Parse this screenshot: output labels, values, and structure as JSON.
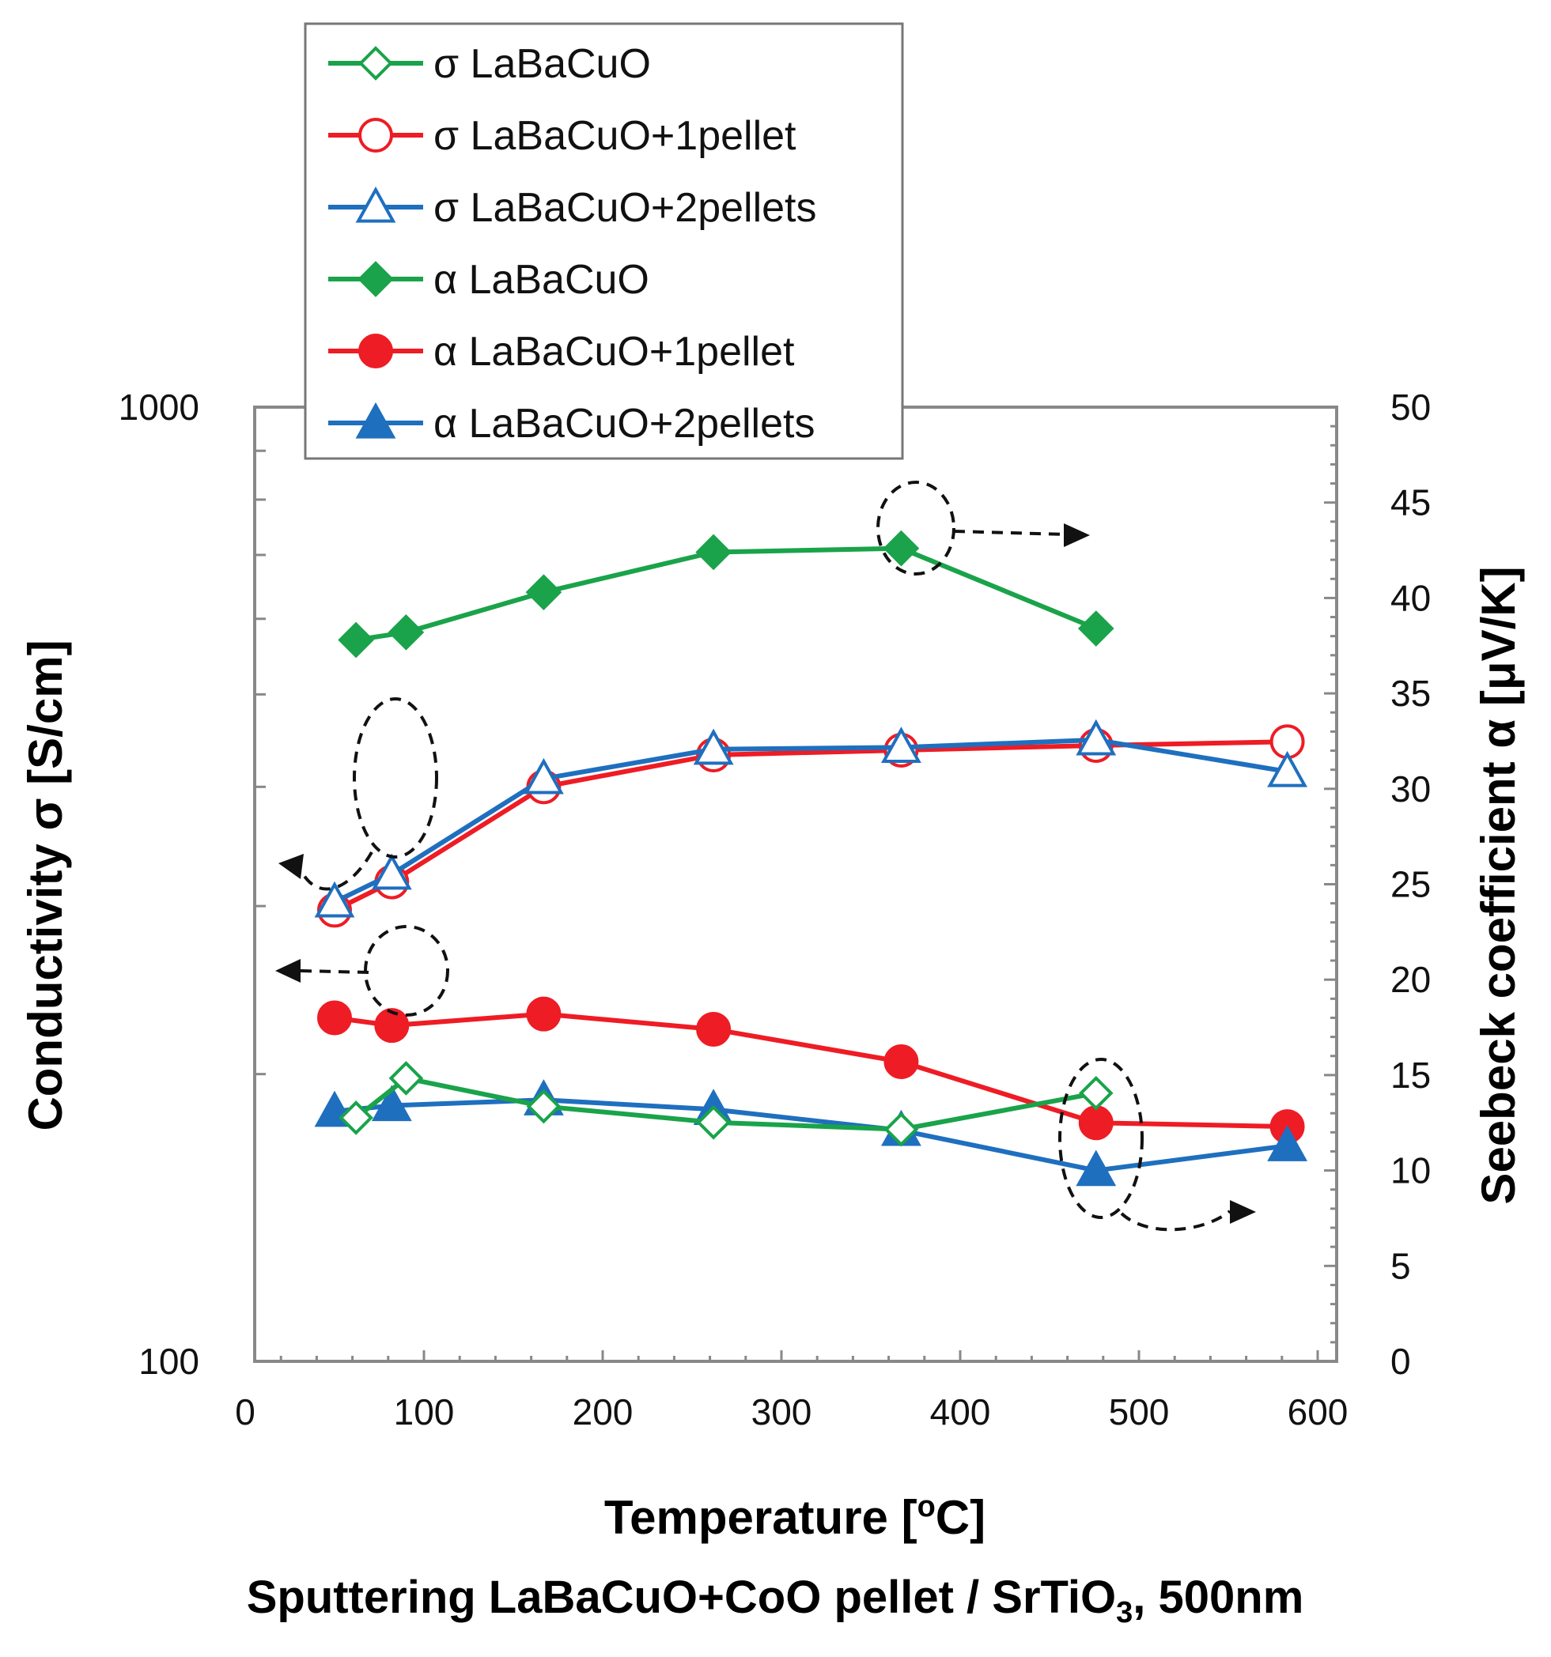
{
  "chart_data": {
    "type": "line",
    "caption": "Sputtering LaBaCuO+CoO pellet / SrTiO",
    "caption_subscript": "3",
    "caption_suffix": ", 500nm",
    "xlabel": "Temperature [",
    "xlabel_degree": "o",
    "xlabel_unit": "C]",
    "ylabel_left": "Conductivity σ [S/cm]",
    "ylabel_right": "Seebeck coefficient α [μV/K]",
    "xlim": [
      0,
      600
    ],
    "xticks": [
      0,
      100,
      200,
      300,
      400,
      500,
      600
    ],
    "ylim_left": [
      100,
      1000
    ],
    "yscale_left": "log",
    "yticks_left": [
      100,
      1000
    ],
    "ylim_right": [
      0,
      50
    ],
    "yticks_right": [
      0,
      5,
      10,
      15,
      20,
      25,
      30,
      35,
      40,
      45,
      50
    ],
    "legend_position": "top-left, overlapping plot top",
    "series": [
      {
        "name": "σ LaBaCuO",
        "axis": "left",
        "color": "#1aa34a",
        "marker": "diamond",
        "filled": false,
        "x": [
          62,
          90,
          167,
          262,
          367,
          476
        ],
        "y": [
          180,
          198,
          185,
          178,
          175,
          191
        ]
      },
      {
        "name": "σ LaBaCuO+1pellet",
        "axis": "left",
        "color": "#ee1c24",
        "marker": "circle",
        "filled": false,
        "x": [
          50,
          82,
          167,
          262,
          367,
          476,
          583
        ],
        "y": [
          297,
          318,
          400,
          432,
          437,
          442,
          446
        ]
      },
      {
        "name": "σ LaBaCuO+2pellets",
        "axis": "left",
        "color": "#1f6fbf",
        "marker": "triangle",
        "filled": false,
        "x": [
          50,
          82,
          167,
          262,
          367,
          476,
          583
        ],
        "y": [
          303,
          324,
          408,
          438,
          440,
          448,
          415
        ]
      },
      {
        "name": "α LaBaCuO",
        "axis": "right",
        "color": "#1aa34a",
        "marker": "diamond",
        "filled": true,
        "x": [
          62,
          90,
          167,
          262,
          367,
          476
        ],
        "y": [
          37.8,
          38.2,
          40.3,
          42.4,
          42.6,
          38.4
        ]
      },
      {
        "name": "α LaBaCuO+1pellet",
        "axis": "right",
        "color": "#ee1c24",
        "marker": "circle",
        "filled": true,
        "x": [
          50,
          82,
          167,
          262,
          367,
          476,
          583
        ],
        "y": [
          18.0,
          17.6,
          18.2,
          17.4,
          15.7,
          12.5,
          12.3
        ]
      },
      {
        "name": "α LaBaCuO+2pellets",
        "axis": "right",
        "color": "#1f6fbf",
        "marker": "triangle",
        "filled": true,
        "x": [
          50,
          82,
          167,
          262,
          367,
          476,
          583
        ],
        "y": [
          13.1,
          13.4,
          13.7,
          13.2,
          12.1,
          10.0,
          11.3
        ]
      }
    ]
  }
}
